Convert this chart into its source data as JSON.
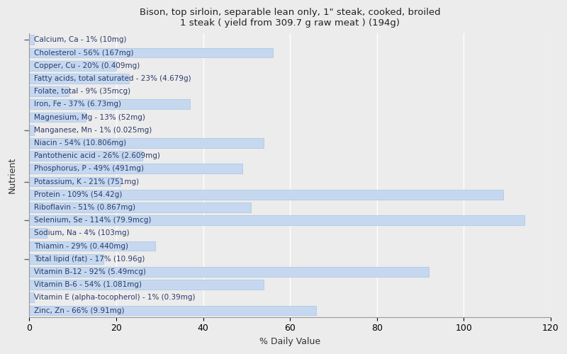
{
  "title": "Bison, top sirloin, separable lean only, 1\" steak, cooked, broiled\n1 steak ( yield from 309.7 g raw meat ) (194g)",
  "xlabel": "% Daily Value",
  "ylabel": "Nutrient",
  "xlim": [
    0,
    120
  ],
  "xticks": [
    0,
    20,
    40,
    60,
    80,
    100,
    120
  ],
  "background_color": "#ececec",
  "plot_bg_color": "#ececec",
  "bar_color": "#c5d8f0",
  "bar_edgecolor": "#a8c4e0",
  "text_color": "#2a3a6a",
  "title_color": "#222222",
  "nutrients": [
    {
      "label": "Calcium, Ca - 1% (10mg)",
      "value": 1
    },
    {
      "label": "Cholesterol - 56% (167mg)",
      "value": 56
    },
    {
      "label": "Copper, Cu - 20% (0.409mg)",
      "value": 20
    },
    {
      "label": "Fatty acids, total saturated - 23% (4.679g)",
      "value": 23
    },
    {
      "label": "Folate, total - 9% (35mcg)",
      "value": 9
    },
    {
      "label": "Iron, Fe - 37% (6.73mg)",
      "value": 37
    },
    {
      "label": "Magnesium, Mg - 13% (52mg)",
      "value": 13
    },
    {
      "label": "Manganese, Mn - 1% (0.025mg)",
      "value": 1
    },
    {
      "label": "Niacin - 54% (10.806mg)",
      "value": 54
    },
    {
      "label": "Pantothenic acid - 26% (2.609mg)",
      "value": 26
    },
    {
      "label": "Phosphorus, P - 49% (491mg)",
      "value": 49
    },
    {
      "label": "Potassium, K - 21% (751mg)",
      "value": 21
    },
    {
      "label": "Protein - 109% (54.42g)",
      "value": 109
    },
    {
      "label": "Riboflavin - 51% (0.867mg)",
      "value": 51
    },
    {
      "label": "Selenium, Se - 114% (79.9mcg)",
      "value": 114
    },
    {
      "label": "Sodium, Na - 4% (103mg)",
      "value": 4
    },
    {
      "label": "Thiamin - 29% (0.440mg)",
      "value": 29
    },
    {
      "label": "Total lipid (fat) - 17% (10.96g)",
      "value": 17
    },
    {
      "label": "Vitamin B-12 - 92% (5.49mcg)",
      "value": 92
    },
    {
      "label": "Vitamin B-6 - 54% (1.081mg)",
      "value": 54
    },
    {
      "label": "Vitamin E (alpha-tocopherol) - 1% (0.39mg)",
      "value": 1
    },
    {
      "label": "Zinc, Zn - 66% (9.91mg)",
      "value": 66
    }
  ],
  "ytick_positions_from_top": [
    0,
    7,
    11,
    14,
    17
  ],
  "bar_height": 0.75,
  "label_fontsize": 7.5,
  "title_fontsize": 9.5,
  "axis_label_fontsize": 9,
  "tick_fontsize": 9
}
